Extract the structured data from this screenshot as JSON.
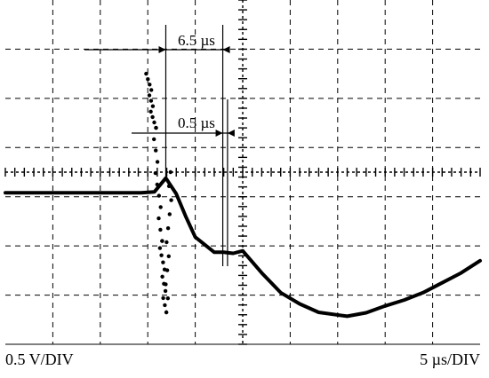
{
  "chart_data": {
    "type": "line",
    "title": "",
    "grid": true,
    "colors": {
      "background": "#ffffff",
      "trace": "#000000",
      "grid": "#000000"
    },
    "divisions": {
      "x": 10,
      "y": 7
    },
    "vertical_scale": {
      "label": "0.5 V/DIV",
      "volts_per_div": 0.5
    },
    "horizontal_scale": {
      "label": "5 µs/DIV",
      "us_per_div": 5
    },
    "xlabel": "",
    "ylabel": "",
    "xlim_us": [
      0,
      50
    ],
    "ylim_div": [
      -3.5,
      3.5
    ],
    "series": [
      {
        "name": "",
        "x_us": [
          0,
          5,
          10,
          14.3,
          15.7,
          16.9,
          18.0,
          19.0,
          20.0,
          22.0,
          23.0,
          24.0,
          25.0,
          27.0,
          29.0,
          31.0,
          33.0,
          36.0,
          38.0,
          40.0,
          42.0,
          44.0,
          46.0,
          48.0,
          50.0
        ],
        "y_div": [
          -0.42,
          -0.42,
          -0.42,
          -0.42,
          -0.4,
          -0.12,
          -0.44,
          -0.9,
          -1.32,
          -1.63,
          -1.63,
          -1.65,
          -1.6,
          -2.05,
          -2.45,
          -2.68,
          -2.85,
          -2.93,
          -2.86,
          -2.72,
          -2.6,
          -2.45,
          -2.25,
          -2.05,
          -1.8
        ]
      }
    ],
    "spike_scatter": {
      "x_us": [
        15.0,
        15.7,
        16.4,
        16.9,
        17.4
      ],
      "y_div": [
        2.0,
        0.9,
        -1.4,
        -2.85,
        0.0
      ]
    },
    "annotations": [
      {
        "label": "6.5 µs",
        "interval_us": 6.5,
        "from_us": 16.9,
        "to_us": 23.4
      },
      {
        "label": "0.5 µs",
        "interval_us": 0.5,
        "from_us": 22.9,
        "to_us": 23.4
      }
    ]
  }
}
